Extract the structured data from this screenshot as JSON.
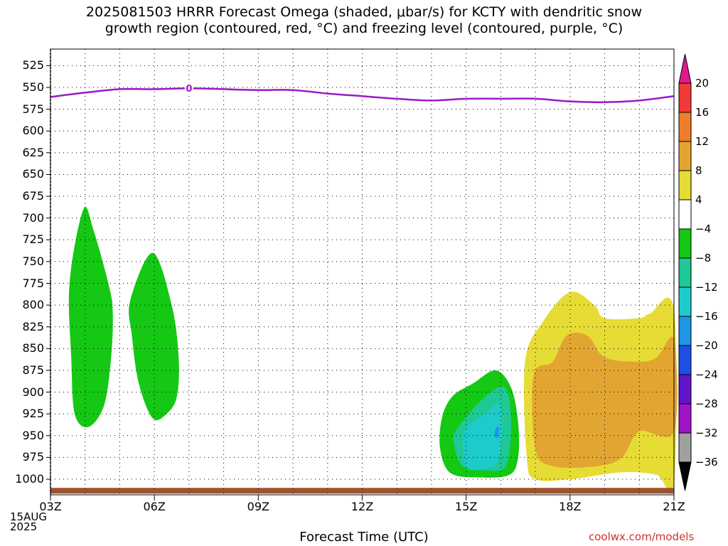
{
  "title_line1": "2025081503 HRRR Forecast Omega (shaded, μbar/s) for KCTY with dendritic snow",
  "title_line2": "growth region (contoured, red, °C) and freezing level (contoured, purple, °C)",
  "credit": "coolwx.com/models",
  "chart_data": {
    "type": "area",
    "title": "2025081503 HRRR Forecast Omega (shaded, μbar/s) for KCTY with dendritic snow growth region (contoured, red, °C) and freezing level (contoured, purple, °C)",
    "xlabel": "Forecast Time (UTC)",
    "ylabel": "",
    "x_ticks": [
      "03Z",
      "06Z",
      "09Z",
      "12Z",
      "15Z",
      "18Z",
      "21Z"
    ],
    "x_tick_hours": [
      3,
      6,
      9,
      12,
      15,
      18,
      21
    ],
    "x_date_line1": "15AUG",
    "x_date_line2": "2025",
    "xlim": [
      3,
      21
    ],
    "y_ticks": [
      525,
      550,
      575,
      600,
      625,
      650,
      675,
      700,
      725,
      750,
      775,
      800,
      825,
      850,
      875,
      900,
      925,
      950,
      975,
      1000
    ],
    "ylim": [
      1013,
      515
    ],
    "grid": true,
    "colorbar": {
      "labels": [
        "20",
        "16",
        "12",
        "8",
        "4",
        "−4",
        "−8",
        "−12",
        "−16",
        "−20",
        "−24",
        "−28",
        "−32",
        "−36"
      ],
      "colors": [
        "#e01a8a",
        "#ef3b36",
        "#ef7e2a",
        "#e3a531",
        "#e6dc35",
        "#ffffff",
        "#14c814",
        "#1ec996",
        "#1ecbcb",
        "#1e96e6",
        "#1e50e6",
        "#6414c8",
        "#a014c8",
        "#a0a0a0",
        "#000000"
      ]
    },
    "freezing_level": {
      "label": "0",
      "color": "#9b19c8",
      "x": [
        3,
        4,
        5,
        6,
        7,
        8,
        9,
        10,
        11,
        12,
        13,
        14,
        15,
        16,
        17,
        18,
        19,
        20,
        21
      ],
      "y": [
        561,
        556,
        552,
        552,
        551,
        552,
        553,
        553,
        557,
        560,
        563,
        565,
        563,
        563,
        563,
        566,
        567,
        565,
        560
      ]
    },
    "omega_regions": [
      {
        "level": "-8 to -4",
        "color": "#14c814",
        "x": [
          3.55,
          3.95,
          4.25,
          4.7,
          4.8,
          4.75,
          4.55,
          4.1,
          3.7,
          3.6,
          3.55
        ],
        "y": [
          775,
          690,
          715,
          780,
          810,
          860,
          915,
          940,
          925,
          860,
          775
        ]
      },
      {
        "level": "-8 to -4",
        "color": "#14c814",
        "x": [
          5.3,
          5.95,
          6.5,
          6.7,
          6.65,
          6.35,
          5.95,
          5.55,
          5.35,
          5.3
        ],
        "y": [
          795,
          740,
          800,
          860,
          905,
          925,
          930,
          890,
          835,
          795
        ]
      },
      {
        "level": "-8 to -4",
        "color": "#14c814",
        "x": [
          14.3,
          14.6,
          15.2,
          15.85,
          16.3,
          16.5,
          16.5,
          16.25,
          15.4,
          14.55,
          14.25,
          14.3
        ],
        "y": [
          930,
          905,
          890,
          875,
          895,
          935,
          975,
          995,
          998,
          993,
          965,
          930
        ]
      },
      {
        "level": "-12 to -8",
        "color": "#1ec996",
        "x": [
          14.7,
          15.3,
          15.9,
          16.2,
          16.3,
          16.15,
          15.6,
          14.9,
          14.65,
          14.7
        ],
        "y": [
          945,
          915,
          895,
          900,
          940,
          985,
          990,
          985,
          960,
          945
        ]
      },
      {
        "level": "-16 to -12",
        "color": "#1ecbcb",
        "x": [
          14.95,
          15.55,
          15.95,
          16.05,
          15.9,
          15.5,
          15.0,
          14.95
        ],
        "y": [
          945,
          925,
          915,
          945,
          980,
          988,
          985,
          945
        ]
      },
      {
        "level": "-20 to -16",
        "color": "#1e96e6",
        "x": [
          15.85,
          15.95,
          15.92,
          15.82,
          15.85
        ],
        "y": [
          942,
          940,
          952,
          950,
          942
        ]
      },
      {
        "level": "4 to 8",
        "color": "#e6dc35",
        "x": [
          16.7,
          17.2,
          18.0,
          18.7,
          19.0,
          20.0,
          20.3,
          21.0,
          21.0,
          20.5,
          19.5,
          18.0,
          17.0,
          16.75,
          16.7
        ],
        "y": [
          865,
          820,
          785,
          800,
          815,
          815,
          810,
          805,
          1005,
          995,
          992,
          1000,
          1000,
          975,
          865
        ]
      },
      {
        "level": "8 to 12",
        "color": "#e3a531",
        "x": [
          16.95,
          17.5,
          17.9,
          18.5,
          19.0,
          20.0,
          20.5,
          21.0,
          21.0,
          20.0,
          19.5,
          18.8,
          17.5,
          17.0,
          16.95
        ],
        "y": [
          880,
          865,
          835,
          835,
          860,
          865,
          860,
          840,
          945,
          945,
          975,
          985,
          985,
          965,
          880
        ]
      }
    ],
    "ground": {
      "color": "#a0522d",
      "pressure_top": 1010
    }
  }
}
